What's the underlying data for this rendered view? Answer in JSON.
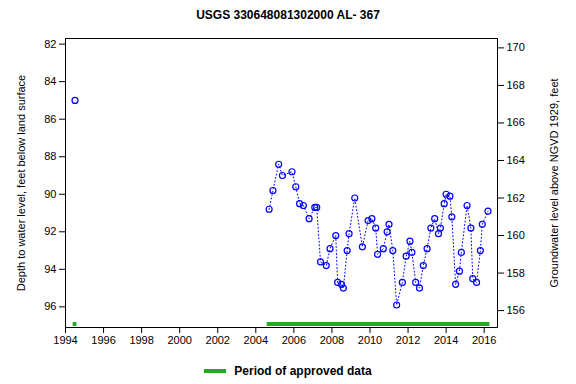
{
  "chart_data": {
    "type": "scatter",
    "title": "USGS 330648081302000 AL- 367",
    "ylabel": "Depth to water level, feet below land surface",
    "y2label": "Groundwater level above NGVD 1929, feet",
    "x": [
      1994.5,
      null,
      2004.7,
      2004.9,
      2005.2,
      2005.4,
      2005.9,
      2006.1,
      2006.3,
      2006.5,
      2006.8,
      2007.1,
      2007.2,
      2007.4,
      2007.7,
      2007.9,
      2008.2,
      2008.3,
      2008.5,
      2008.6,
      2008.8,
      2008.9,
      2009.2,
      2009.6,
      2009.9,
      2010.1,
      2010.3,
      2010.4,
      2010.7,
      2010.9,
      2011.0,
      2011.2,
      2011.4,
      2011.7,
      2011.9,
      2012.1,
      2012.2,
      2012.4,
      2012.6,
      2012.8,
      2013.0,
      2013.2,
      2013.4,
      2013.6,
      2013.7,
      2013.9,
      2014.0,
      2014.2,
      2014.3,
      2014.5,
      2014.7,
      2014.8,
      2015.1,
      2015.3,
      2015.4,
      2015.6,
      2015.8,
      2015.9,
      2016.2
    ],
    "values": [
      85.0,
      null,
      90.8,
      89.8,
      88.4,
      89.0,
      88.8,
      89.6,
      90.5,
      90.6,
      91.3,
      90.7,
      90.7,
      93.6,
      93.8,
      92.9,
      92.2,
      94.7,
      94.8,
      95.0,
      93.0,
      92.1,
      90.2,
      92.8,
      91.4,
      91.3,
      91.8,
      93.2,
      92.9,
      92.0,
      91.6,
      93.0,
      95.9,
      94.7,
      93.3,
      92.5,
      93.1,
      94.7,
      95.0,
      93.8,
      92.9,
      91.8,
      91.3,
      92.1,
      91.8,
      90.5,
      90.0,
      90.1,
      91.2,
      94.8,
      94.1,
      93.1,
      90.6,
      91.8,
      94.5,
      94.7,
      93.0,
      91.6,
      90.9
    ],
    "color": "#0000ff",
    "marker": "circle",
    "line_style": "dotted",
    "xlim": [
      1994,
      2016.7
    ],
    "xticks": [
      1994,
      1996,
      1998,
      2000,
      2002,
      2004,
      2006,
      2008,
      2010,
      2012,
      2014,
      2016
    ],
    "ylim": [
      97.1,
      81.7
    ],
    "yticks": [
      82,
      84,
      86,
      88,
      90,
      92,
      94,
      96
    ],
    "y2lim": [
      155.1,
      170.5
    ],
    "y2ticks": [
      156,
      158,
      160,
      162,
      164,
      166,
      168,
      170
    ],
    "periods": {
      "name": "Period of approved data",
      "color": "#22aa22",
      "start": [
        1994.4,
        2004.6
      ],
      "end": [
        1994.6,
        2016.3
      ]
    },
    "grid": false,
    "legend": "bottom"
  }
}
